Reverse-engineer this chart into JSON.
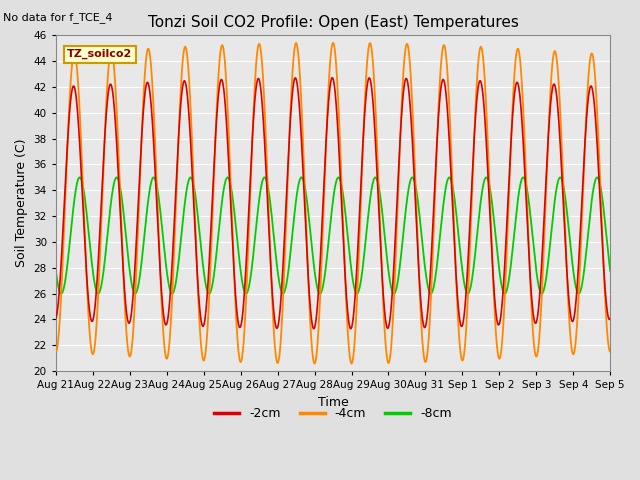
{
  "title": "Tonzi Soil CO2 Profile: Open (East) Temperatures",
  "subtitle": "No data for f_TCE_4",
  "ylabel": "Soil Temperature (C)",
  "xlabel": "Time",
  "ylim": [
    20,
    46
  ],
  "yticks": [
    20,
    22,
    24,
    26,
    28,
    30,
    32,
    34,
    36,
    38,
    40,
    42,
    44,
    46
  ],
  "xtick_labels": [
    "Aug 21",
    "Aug 22",
    "Aug 23",
    "Aug 24",
    "Aug 25",
    "Aug 26",
    "Aug 27",
    "Aug 28",
    "Aug 29",
    "Aug 30",
    "Aug 31",
    "Sep 1",
    "Sep 2",
    "Sep 3",
    "Sep 4",
    "Sep 5"
  ],
  "legend_label": "TZ_soilco2",
  "legend_bg": "#ffffcc",
  "legend_border": "#cc9900",
  "color_2cm": "#dd0000",
  "color_4cm": "#ff8800",
  "color_8cm": "#00cc00",
  "label_2cm": "-2cm",
  "label_4cm": "-4cm",
  "label_8cm": "-8cm",
  "bg_color": "#e0e0e0",
  "plot_bg": "#e8e8e8",
  "grid_color": "#ffffff",
  "n_days": 15,
  "amp_4cm": 11.5,
  "mid_4cm": 33.0,
  "amp_2cm": 9.0,
  "mid_2cm": 33.0,
  "amp_8cm": 4.5,
  "mid_8cm": 30.5,
  "phase_2cm_lead": 0.5,
  "phase_8cm_lag": 3.5
}
